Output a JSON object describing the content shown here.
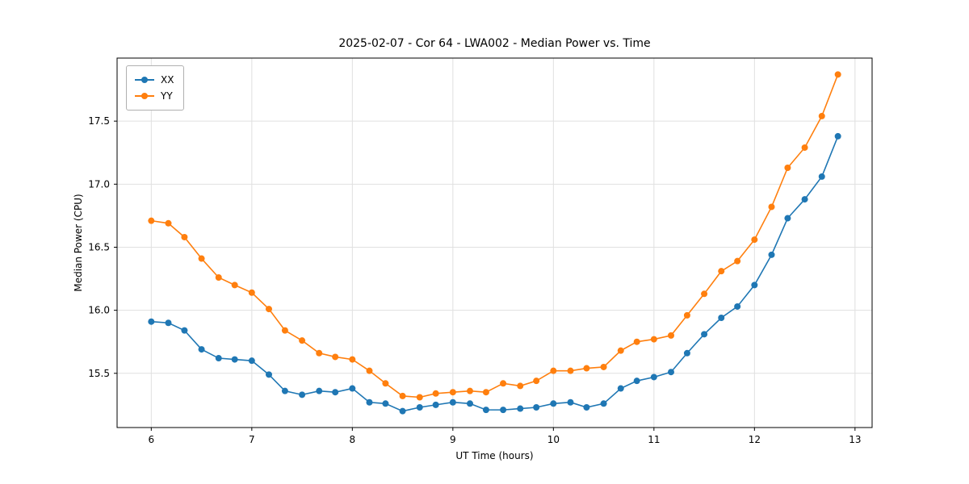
{
  "title": "2025-02-07 - Cor 64 - LWA002 - Median Power vs. Time",
  "chart_data": {
    "type": "line",
    "title": "2025-02-07 - Cor 64 - LWA002 - Median Power vs. Time",
    "xlabel": "UT Time (hours)",
    "ylabel": "Median Power (CPU)",
    "xlim": [
      5.66,
      13.17
    ],
    "ylim": [
      15.07,
      18.0
    ],
    "xticks": [
      6,
      7,
      8,
      9,
      10,
      11,
      12,
      13
    ],
    "yticks": [
      15.5,
      16.0,
      16.5,
      17.0,
      17.5
    ],
    "grid": true,
    "legend_position": "upper left",
    "x": [
      6.0,
      6.17,
      6.33,
      6.5,
      6.67,
      6.83,
      7.0,
      7.17,
      7.33,
      7.5,
      7.67,
      7.83,
      8.0,
      8.17,
      8.33,
      8.5,
      8.67,
      8.83,
      9.0,
      9.17,
      9.33,
      9.5,
      9.67,
      9.83,
      10.0,
      10.17,
      10.33,
      10.5,
      10.67,
      10.83,
      11.0,
      11.17,
      11.33,
      11.5,
      11.67,
      11.83,
      12.0,
      12.17,
      12.33,
      12.5,
      12.67,
      12.83
    ],
    "series": [
      {
        "name": "XX",
        "color": "#1f77b4",
        "values": [
          15.91,
          15.9,
          15.84,
          15.69,
          15.62,
          15.61,
          15.6,
          15.49,
          15.36,
          15.33,
          15.36,
          15.35,
          15.38,
          15.27,
          15.26,
          15.2,
          15.23,
          15.25,
          15.27,
          15.26,
          15.21,
          15.21,
          15.22,
          15.23,
          15.26,
          15.27,
          15.23,
          15.26,
          15.38,
          15.44,
          15.47,
          15.51,
          15.66,
          15.81,
          15.94,
          16.03,
          16.2,
          16.44,
          16.73,
          16.88,
          17.06,
          17.38
        ]
      },
      {
        "name": "YY",
        "color": "#ff7f0e",
        "values": [
          16.71,
          16.69,
          16.58,
          16.41,
          16.26,
          16.2,
          16.14,
          16.01,
          15.84,
          15.76,
          15.66,
          15.63,
          15.61,
          15.52,
          15.42,
          15.32,
          15.31,
          15.34,
          15.35,
          15.36,
          15.35,
          15.42,
          15.4,
          15.44,
          15.52,
          15.52,
          15.54,
          15.55,
          15.68,
          15.75,
          15.77,
          15.8,
          15.96,
          16.13,
          16.31,
          16.39,
          16.56,
          16.82,
          17.13,
          17.29,
          17.54,
          17.87
        ]
      }
    ],
    "style": {
      "grid_color": "#e0e0e0",
      "axis_color": "#000000",
      "background": "#ffffff",
      "marker_radius": 4,
      "line_width": 1.6
    }
  }
}
